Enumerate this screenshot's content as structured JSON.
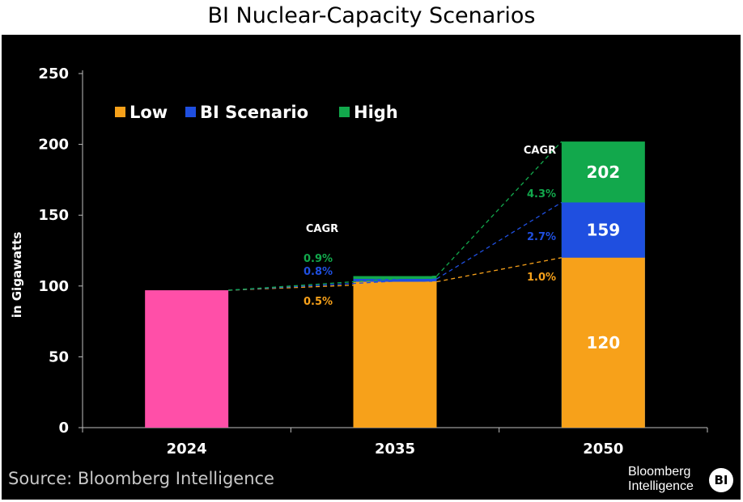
{
  "chart_data": {
    "type": "bar",
    "title": "BI Nuclear-Capacity Scenarios",
    "ylabel": "in Gigawatts",
    "xlabel": "",
    "ylim": [
      0,
      250
    ],
    "yticks": [
      0,
      50,
      100,
      150,
      200,
      250
    ],
    "categories": [
      "2024",
      "2035",
      "2050"
    ],
    "baseline": {
      "category": "2024",
      "value": 97,
      "color": "#ff4fa8"
    },
    "series": [
      {
        "name": "Low",
        "color": "#f7a11a",
        "values": [
          null,
          103,
          120
        ]
      },
      {
        "name": "BI Scenario",
        "color": "#1f4fe0",
        "values": [
          null,
          105,
          159
        ]
      },
      {
        "name": "High",
        "color": "#12a84c",
        "values": [
          null,
          107,
          202
        ]
      }
    ],
    "bar_labels_2050": [
      "120",
      "159",
      "202"
    ],
    "cagr": {
      "label": "CAGR",
      "2035": {
        "High": "0.9%",
        "BI Scenario": "0.8%",
        "Low": "0.5%"
      },
      "2050": {
        "High": "4.3%",
        "BI Scenario": "2.7%",
        "Low": "1.0%"
      }
    },
    "legend_position": "top-left",
    "grid": false
  },
  "footer": {
    "source": "Source: Bloomberg Intelligence",
    "brand_line1": "Bloomberg",
    "brand_line2": "Intelligence",
    "brand_badge": "BI"
  }
}
